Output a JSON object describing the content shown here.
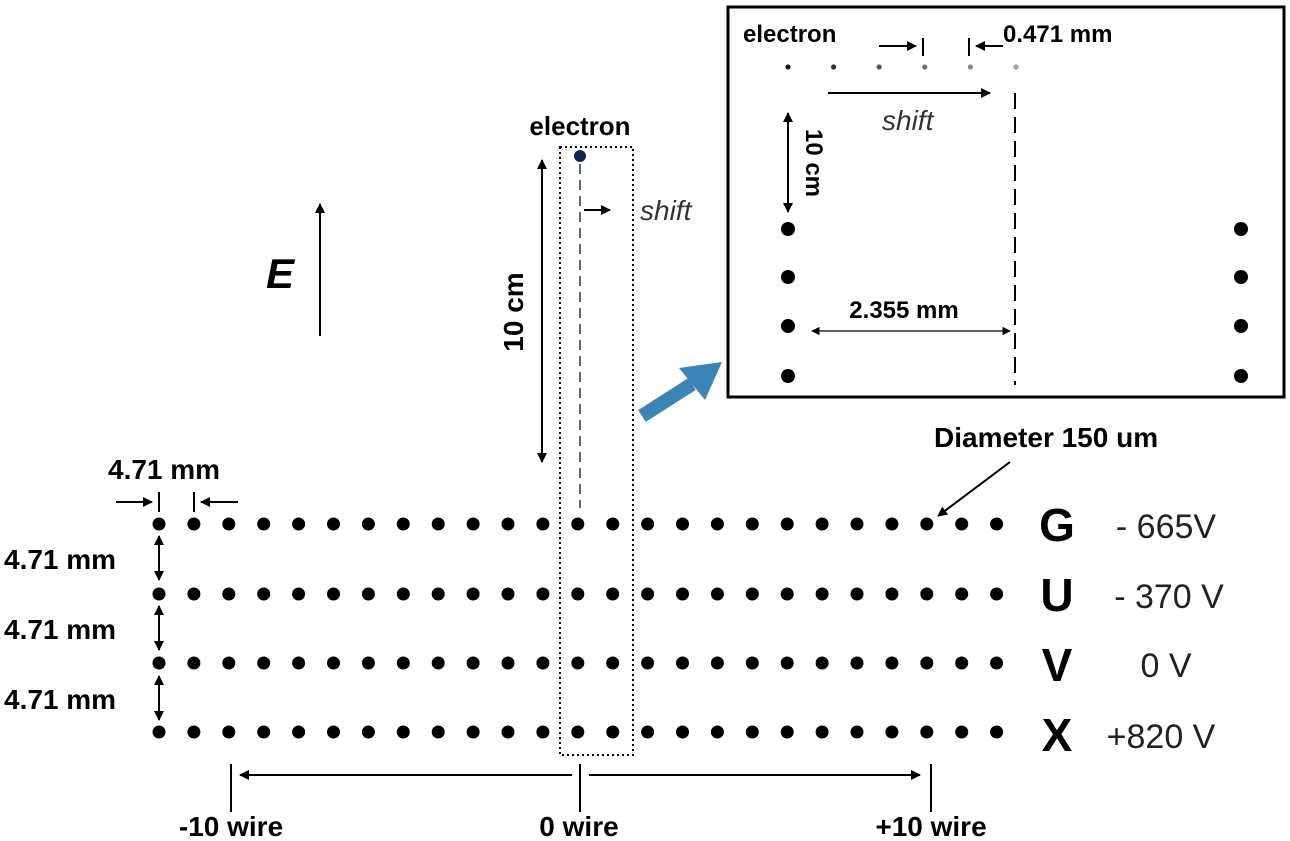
{
  "field": {
    "label": "E"
  },
  "main": {
    "electron_label": "electron",
    "drift_length_label": "10 cm",
    "shift_label": "shift",
    "wire_pitch_label": "4.71 mm",
    "plane_gap_labels": [
      "4.71 mm",
      "4.71 mm",
      "4.71 mm"
    ],
    "diameter_label": "Diameter 150 um",
    "wires_per_plane": 25,
    "planes": [
      {
        "letter": "G",
        "voltage": "- 665V"
      },
      {
        "letter": "U",
        "voltage": "- 370 V"
      },
      {
        "letter": "V",
        "voltage": "0 V"
      },
      {
        "letter": "X",
        "voltage": "+820 V"
      }
    ],
    "wire_index_labels": [
      "-10 wire",
      "0 wire",
      "+10 wire"
    ]
  },
  "inset": {
    "electron_label": "electron",
    "step_label": "0.471 mm",
    "shift_label": "shift",
    "drift_length_label": "10 cm",
    "half_pitch_label": "2.355 mm"
  },
  "colors": {
    "wire": "#000000",
    "electron": "#0d2a4e",
    "zoom_arrow": "#3a84b6",
    "electron_track": [
      "#1a1a1a",
      "#333333",
      "#555555",
      "#707070",
      "#8a8a8a",
      "#a0a0a0"
    ]
  }
}
